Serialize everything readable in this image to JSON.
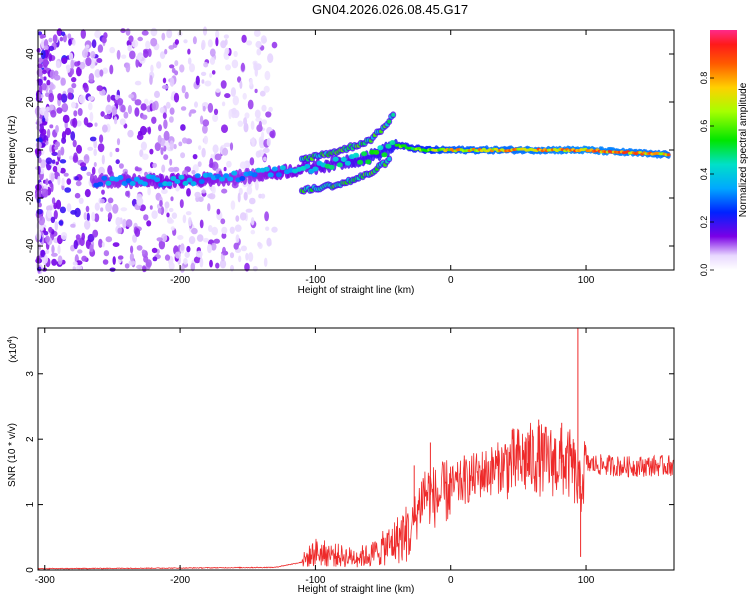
{
  "title": "GN04.2026.026.08.45.G17",
  "chart_data": [
    {
      "type": "heatmap",
      "name": "spectrogram",
      "xlabel": "Height of straight line (km)",
      "ylabel": "Frequency (Hz)",
      "xlim": [
        -305,
        165
      ],
      "ylim": [
        -50,
        50
      ],
      "xticks": [
        -300,
        -200,
        -100,
        0,
        100
      ],
      "xtick_labels": [
        "-300",
        "-200",
        "-100",
        "0",
        "100"
      ],
      "yticks": [
        -40,
        -20,
        0,
        20,
        40
      ],
      "ytick_labels": [
        "-40",
        "-20",
        "0",
        "20",
        "40"
      ],
      "colorbar": {
        "label": "Normalized spectral amplitude",
        "range": [
          0,
          1
        ],
        "ticks": [
          0.0,
          0.2,
          0.4,
          0.6,
          0.8
        ],
        "tick_labels": [
          "0.0",
          "0.2",
          "0.4",
          "0.6",
          "0.8"
        ]
      },
      "ridge": {
        "x": [
          -260,
          -200,
          -150,
          -100,
          -60,
          -40,
          -20,
          0,
          50,
          100,
          160
        ],
        "y": [
          -13,
          -13,
          -11,
          -7,
          -3,
          2,
          0,
          0,
          0,
          0,
          -2
        ],
        "amplitude": [
          0.35,
          0.4,
          0.35,
          0.45,
          0.55,
          0.6,
          0.65,
          0.8,
          0.85,
          0.9,
          0.85
        ]
      },
      "upper_branch": {
        "x": [
          -110,
          -80,
          -60,
          -50,
          -42
        ],
        "y": [
          -4,
          0,
          4,
          9,
          15
        ]
      },
      "lower_branch": {
        "x": [
          -110,
          -80,
          -60,
          -45
        ],
        "y": [
          -17,
          -14,
          -10,
          -4
        ]
      }
    },
    {
      "type": "line",
      "name": "snr",
      "xlabel": "Height of straight line (km)",
      "ylabel": "SNR (10 * v/v)",
      "y_multiplier": "(x10",
      "y_multiplier_exp": "4",
      "y_multiplier_close": ")",
      "xlim": [
        -305,
        165
      ],
      "ylim": [
        0,
        3.7
      ],
      "xticks": [
        -300,
        -200,
        -100,
        0,
        100
      ],
      "xtick_labels": [
        "-300",
        "-200",
        "-100",
        "0",
        "100"
      ],
      "yticks": [
        0,
        1,
        2,
        3
      ],
      "ytick_labels": [
        "0",
        "1",
        "2",
        "3"
      ],
      "color": "#ee2a2a",
      "envelope": {
        "x": [
          -305,
          -200,
          -130,
          -110,
          -100,
          -90,
          -75,
          -60,
          -45,
          -30,
          -20,
          -10,
          0,
          20,
          40,
          60,
          80,
          90,
          95,
          100,
          130,
          165
        ],
        "y": [
          0.02,
          0.03,
          0.04,
          0.12,
          0.25,
          0.22,
          0.18,
          0.2,
          0.35,
          0.55,
          1.2,
          1.1,
          1.25,
          1.45,
          1.6,
          1.7,
          1.65,
          1.6,
          1.2,
          1.62,
          1.58,
          1.6
        ]
      },
      "spikes": [
        {
          "x": -27,
          "y": 1.6
        },
        {
          "x": -15,
          "y": 1.95
        },
        {
          "x": 10,
          "y": 1.75
        },
        {
          "x": 57,
          "y": 2.1
        },
        {
          "x": 65,
          "y": 2.3
        },
        {
          "x": 82,
          "y": 2.25
        },
        {
          "x": 94,
          "y": 3.7
        },
        {
          "x": 96,
          "y": 0.2
        }
      ]
    }
  ]
}
